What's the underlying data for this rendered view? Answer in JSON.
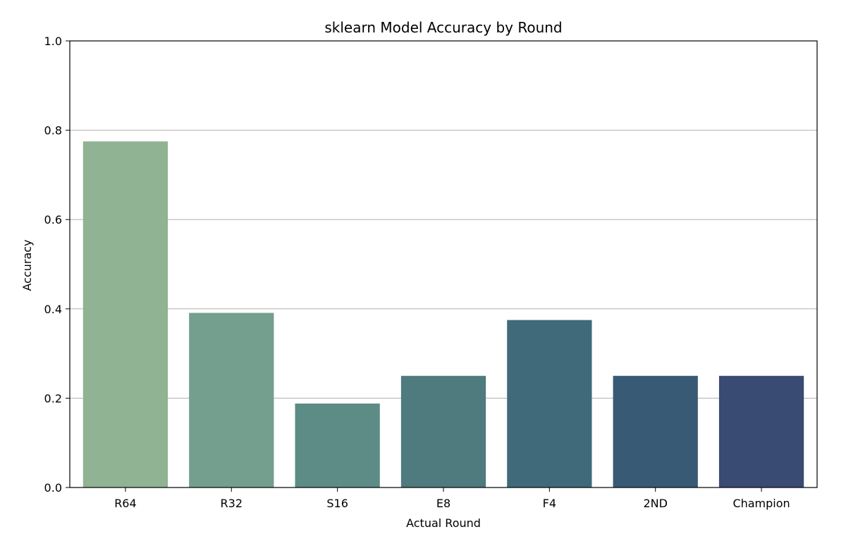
{
  "chart_data": {
    "type": "bar",
    "title": "sklearn Model Accuracy by Round",
    "xlabel": "Actual Round",
    "ylabel": "Accuracy",
    "categories": [
      "R64",
      "R32",
      "S16",
      "E8",
      "F4",
      "2ND",
      "Champion"
    ],
    "values": [
      0.775,
      0.391,
      0.188,
      0.25,
      0.375,
      0.25,
      0.25
    ],
    "ylim": [
      0,
      1.0
    ],
    "yticks": [
      "0.0",
      "0.2",
      "0.4",
      "0.6",
      "0.8",
      "1.0"
    ],
    "grid": "y-axis horizontal gridlines",
    "legend": "none",
    "colors": [
      "#8fb393",
      "#749e8e",
      "#5d8c86",
      "#4f7a7e",
      "#406a7a",
      "#385a75",
      "#394a73"
    ]
  }
}
